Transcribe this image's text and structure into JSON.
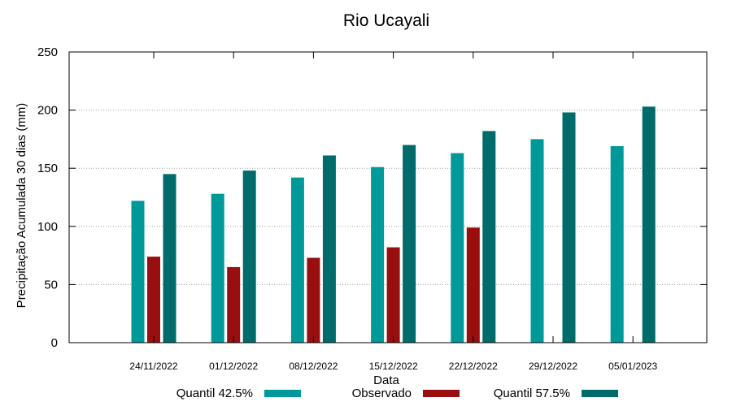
{
  "chart_data": {
    "type": "bar",
    "title": "Rio Ucayali",
    "xlabel": "Data",
    "ylabel": "Precipitação Acumulada 30 dias (mm)",
    "ylim": [
      0,
      250
    ],
    "yticks": [
      "0",
      "50",
      "100",
      "150",
      "200",
      "250"
    ],
    "grid": true,
    "legend_position": "bottom",
    "categories": [
      "24/11/2022",
      "01/12/2022",
      "08/12/2022",
      "15/12/2022",
      "22/12/2022",
      "29/12/2022",
      "05/01/2023"
    ],
    "series": [
      {
        "name": "Quantil 42.5%",
        "color": "#009999",
        "values": [
          122,
          128,
          142,
          151,
          163,
          175,
          169
        ]
      },
      {
        "name": "Observado",
        "color": "#990f0f",
        "values": [
          74,
          65,
          73,
          82,
          99,
          null,
          null
        ]
      },
      {
        "name": "Quantil 57.5%",
        "color": "#006b6b",
        "values": [
          145,
          148,
          161,
          170,
          182,
          198,
          203
        ]
      }
    ]
  }
}
